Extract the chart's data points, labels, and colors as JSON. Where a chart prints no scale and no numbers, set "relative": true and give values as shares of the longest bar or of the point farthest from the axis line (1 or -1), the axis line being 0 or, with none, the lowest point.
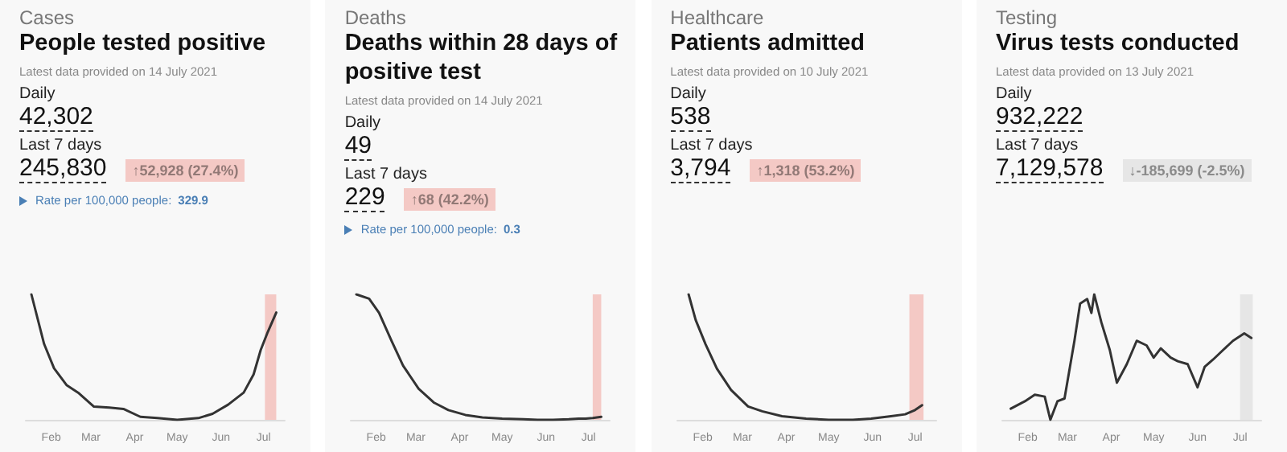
{
  "chart_data": [
    {
      "type": "line",
      "subtitle": "Cases",
      "title": "People tested positive",
      "annotations": [
        "Latest data provided on 14 July 2021",
        "Daily",
        "42,302",
        "Last 7 days",
        "245,830",
        "↑52,928 (27.4%)",
        "Rate per 100,000 people:",
        "329.9"
      ],
      "relative": true,
      "xlim": [
        "2021-01-14",
        "2021-07-16"
      ],
      "xticks": [
        {
          "value": "2021-02-01",
          "label": "Feb"
        },
        {
          "value": "2021-03-01",
          "label": "Mar"
        },
        {
          "value": "2021-04-01",
          "label": "Apr"
        },
        {
          "value": "2021-05-01",
          "label": "May"
        },
        {
          "value": "2021-06-01",
          "label": "Jun"
        },
        {
          "value": "2021-07-01",
          "label": "Jul"
        }
      ],
      "series": [
        {
          "color": "#333333",
          "x": [
            "2021-01-18",
            "2021-01-27",
            "2021-02-03",
            "2021-02-12",
            "2021-02-20",
            "2021-03-03",
            "2021-03-14",
            "2021-03-24",
            "2021-04-05",
            "2021-04-17",
            "2021-05-01",
            "2021-05-16",
            "2021-05-26",
            "2021-06-06",
            "2021-06-17",
            "2021-06-24",
            "2021-06-29",
            "2021-07-04",
            "2021-07-10"
          ],
          "values": [
            1,
            0.604,
            0.411,
            0.275,
            0.217,
            0.106,
            0.097,
            0.087,
            0.024,
            0.014,
            0,
            0.014,
            0.048,
            0.121,
            0.217,
            0.362,
            0.556,
            0.7,
            0.855
          ]
        }
      ],
      "bands": [
        {
          "axis": "x",
          "from": "2021-07-02",
          "to": "2021-07-10",
          "color": "#f4c9c5"
        }
      ],
      "marker": "none",
      "line_style": "solid"
    },
    {
      "type": "line",
      "subtitle": "Deaths",
      "title": "Deaths within 28 days of positive test",
      "annotations": [
        "Latest data provided on 14 July 2021",
        "Daily",
        "49",
        "Last 7 days",
        "229",
        "↑68 (42.2%)",
        "Rate per 100,000 people:",
        "0.3"
      ],
      "relative": true,
      "xlim": [
        "2021-01-14",
        "2021-07-16"
      ],
      "xticks": [
        {
          "value": "2021-02-01",
          "label": "Feb"
        },
        {
          "value": "2021-03-01",
          "label": "Mar"
        },
        {
          "value": "2021-04-01",
          "label": "Apr"
        },
        {
          "value": "2021-05-01",
          "label": "May"
        },
        {
          "value": "2021-06-01",
          "label": "Jun"
        },
        {
          "value": "2021-07-01",
          "label": "Jul"
        }
      ],
      "series": [
        {
          "color": "#333333",
          "x": [
            "2021-01-18",
            "2021-01-27",
            "2021-02-03",
            "2021-02-12",
            "2021-02-20",
            "2021-03-03",
            "2021-03-14",
            "2021-03-24",
            "2021-04-05",
            "2021-04-17",
            "2021-05-01",
            "2021-05-16",
            "2021-05-26",
            "2021-06-06",
            "2021-06-17",
            "2021-06-24",
            "2021-06-29",
            "2021-07-04",
            "2021-07-10"
          ],
          "values": [
            1,
            0.966,
            0.854,
            0.626,
            0.432,
            0.248,
            0.136,
            0.078,
            0.039,
            0.019,
            0.01,
            0.005,
            0,
            0,
            0.005,
            0.01,
            0.01,
            0.015,
            0.024
          ]
        }
      ],
      "bands": [
        {
          "axis": "x",
          "from": "2021-07-04",
          "to": "2021-07-10",
          "color": "#f4c9c5"
        }
      ],
      "marker": "none",
      "line_style": "solid"
    },
    {
      "type": "line",
      "subtitle": "Healthcare",
      "title": "Patients admitted",
      "annotations": [
        "Latest data provided on 10 July 2021",
        "Daily",
        "538",
        "Last 7 days",
        "3,794",
        "↑1,318 (53.2%)"
      ],
      "relative": true,
      "xlim": [
        "2021-01-14",
        "2021-07-16"
      ],
      "xticks": [
        {
          "value": "2021-02-01",
          "label": "Feb"
        },
        {
          "value": "2021-03-01",
          "label": "Mar"
        },
        {
          "value": "2021-04-01",
          "label": "Apr"
        },
        {
          "value": "2021-05-01",
          "label": "May"
        },
        {
          "value": "2021-06-01",
          "label": "Jun"
        },
        {
          "value": "2021-07-01",
          "label": "Jul"
        }
      ],
      "series": [
        {
          "color": "#333333",
          "x": [
            "2021-01-22",
            "2021-01-27",
            "2021-02-03",
            "2021-02-11",
            "2021-02-21",
            "2021-03-05",
            "2021-03-15",
            "2021-03-29",
            "2021-04-15",
            "2021-05-01",
            "2021-05-18",
            "2021-05-31",
            "2021-06-14",
            "2021-06-24",
            "2021-07-01",
            "2021-07-06"
          ],
          "values": [
            1,
            0.796,
            0.602,
            0.408,
            0.238,
            0.107,
            0.068,
            0.029,
            0.01,
            0,
            0,
            0.01,
            0.029,
            0.044,
            0.078,
            0.117
          ]
        }
      ],
      "bands": [
        {
          "axis": "x",
          "from": "2021-06-27",
          "to": "2021-07-07",
          "color": "#f4c9c5"
        }
      ],
      "marker": "none",
      "line_style": "solid"
    },
    {
      "type": "line",
      "subtitle": "Testing",
      "title": "Virus tests conducted",
      "annotations": [
        "Latest data provided on 13 July 2021",
        "Daily",
        "932,222",
        "Last 7 days",
        "7,129,578",
        "↓-185,699 (-2.5%)"
      ],
      "relative": true,
      "xlim": [
        "2021-01-14",
        "2021-07-16"
      ],
      "xticks": [
        {
          "value": "2021-02-01",
          "label": "Feb"
        },
        {
          "value": "2021-03-01",
          "label": "Mar"
        },
        {
          "value": "2021-04-01",
          "label": "Apr"
        },
        {
          "value": "2021-05-01",
          "label": "May"
        },
        {
          "value": "2021-06-01",
          "label": "Jun"
        },
        {
          "value": "2021-07-01",
          "label": "Jul"
        }
      ],
      "series": [
        {
          "color": "#333333",
          "x": [
            "2021-01-20",
            "2021-01-30",
            "2021-02-06",
            "2021-02-13",
            "2021-02-17",
            "2021-02-22",
            "2021-02-27",
            "2021-03-06",
            "2021-03-10",
            "2021-03-15",
            "2021-03-18",
            "2021-03-20",
            "2021-03-25",
            "2021-03-31",
            "2021-04-05",
            "2021-04-12",
            "2021-04-19",
            "2021-04-26",
            "2021-05-01",
            "2021-05-06",
            "2021-05-13",
            "2021-05-18",
            "2021-05-25",
            "2021-06-01",
            "2021-06-06",
            "2021-06-12",
            "2021-06-19",
            "2021-06-26",
            "2021-07-04",
            "2021-07-09"
          ],
          "values": [
            0.089,
            0.148,
            0.2,
            0.185,
            0,
            0.148,
            0.17,
            0.63,
            0.926,
            0.963,
            0.852,
            1,
            0.778,
            0.556,
            0.296,
            0.444,
            0.63,
            0.593,
            0.496,
            0.57,
            0.496,
            0.467,
            0.444,
            0.259,
            0.422,
            0.481,
            0.556,
            0.63,
            0.689,
            0.652
          ]
        }
      ],
      "bands": [
        {
          "axis": "x",
          "from": "2021-07-01",
          "to": "2021-07-10",
          "color": "#e6e6e6"
        }
      ],
      "marker": "none",
      "line_style": "solid"
    }
  ]
}
